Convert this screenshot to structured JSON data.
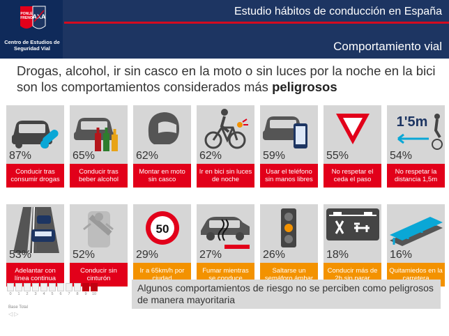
{
  "header": {
    "title": "Estudio hábitos de conducción en España",
    "subtitle": "Comportamiento vial",
    "logo_name": "PONLE FRENO",
    "logo_brand": "AXA",
    "logo_text": "Centro de Estudios de Seguridad Vial"
  },
  "headline": {
    "text": "Drogas, alcohol, ir sin casco en la moto o sin luces por la noche en la bici  son los comportamientos considerados más ",
    "emphasis": "peligrosos"
  },
  "row1": [
    {
      "pct": "87%",
      "label": "Conducir tras consumir drogas",
      "icon": "car-pills-icon",
      "color": "#e2001a"
    },
    {
      "pct": "65%",
      "label": "Conducir tras beber alcohol",
      "icon": "car-bottles-icon",
      "color": "#e2001a"
    },
    {
      "pct": "62%",
      "label": "Montar en moto sin casco",
      "icon": "helmet-icon",
      "color": "#e2001a"
    },
    {
      "pct": "62%",
      "label": "Ir en bici sin luces de noche",
      "icon": "cyclist-light-icon",
      "color": "#e2001a"
    },
    {
      "pct": "59%",
      "label": "Usar el teléfono sin manos libres",
      "icon": "car-phone-icon",
      "color": "#e2001a"
    },
    {
      "pct": "55%",
      "label": "No respetar  el ceda el paso",
      "icon": "yield-sign-icon",
      "color": "#e2001a"
    },
    {
      "pct": "54%",
      "label": "No respetar la distancia 1,5m",
      "icon": "distance-cyclist-icon",
      "color": "#e2001a"
    }
  ],
  "row2": [
    {
      "pct": "53%",
      "label": "Adelantar con línea continua",
      "icon": "overtaking-icon",
      "color": "#e2001a"
    },
    {
      "pct": "52%",
      "label": "Conducir sin cinturón",
      "icon": "seatbelt-icon",
      "color": "#e2001a"
    },
    {
      "pct": "29%",
      "label": "Ir a 65km/h por ciudad",
      "icon": "speed-limit-icon",
      "color": "#f39200"
    },
    {
      "pct": "27%",
      "label": "Fumar mientras se conduce",
      "icon": "car-smoking-icon",
      "color": "#f39200"
    },
    {
      "pct": "26%",
      "label": "Saltarse un semáforo ámbar",
      "icon": "traffic-light-icon",
      "color": "#f39200"
    },
    {
      "pct": "18%",
      "label": "Conducir más de 2h sin parar",
      "icon": "rest-area-icon",
      "color": "#f39200"
    },
    {
      "pct": "16%",
      "label": "Quitamiedos en la carretera",
      "icon": "guardrail-icon",
      "color": "#f39200"
    }
  ],
  "sign_value": "50",
  "distance_sign": "1'5m",
  "scale": {
    "numbers": [
      "0",
      "1",
      "2",
      "3",
      "4",
      "5",
      "6",
      "7",
      "8",
      "9",
      "10"
    ],
    "highlighted": [
      "9",
      "10"
    ],
    "base_label": "Base Total"
  },
  "note": "Algunos comportamientos de riesgo no se perciben como peligrosos de manera mayoritaria"
}
